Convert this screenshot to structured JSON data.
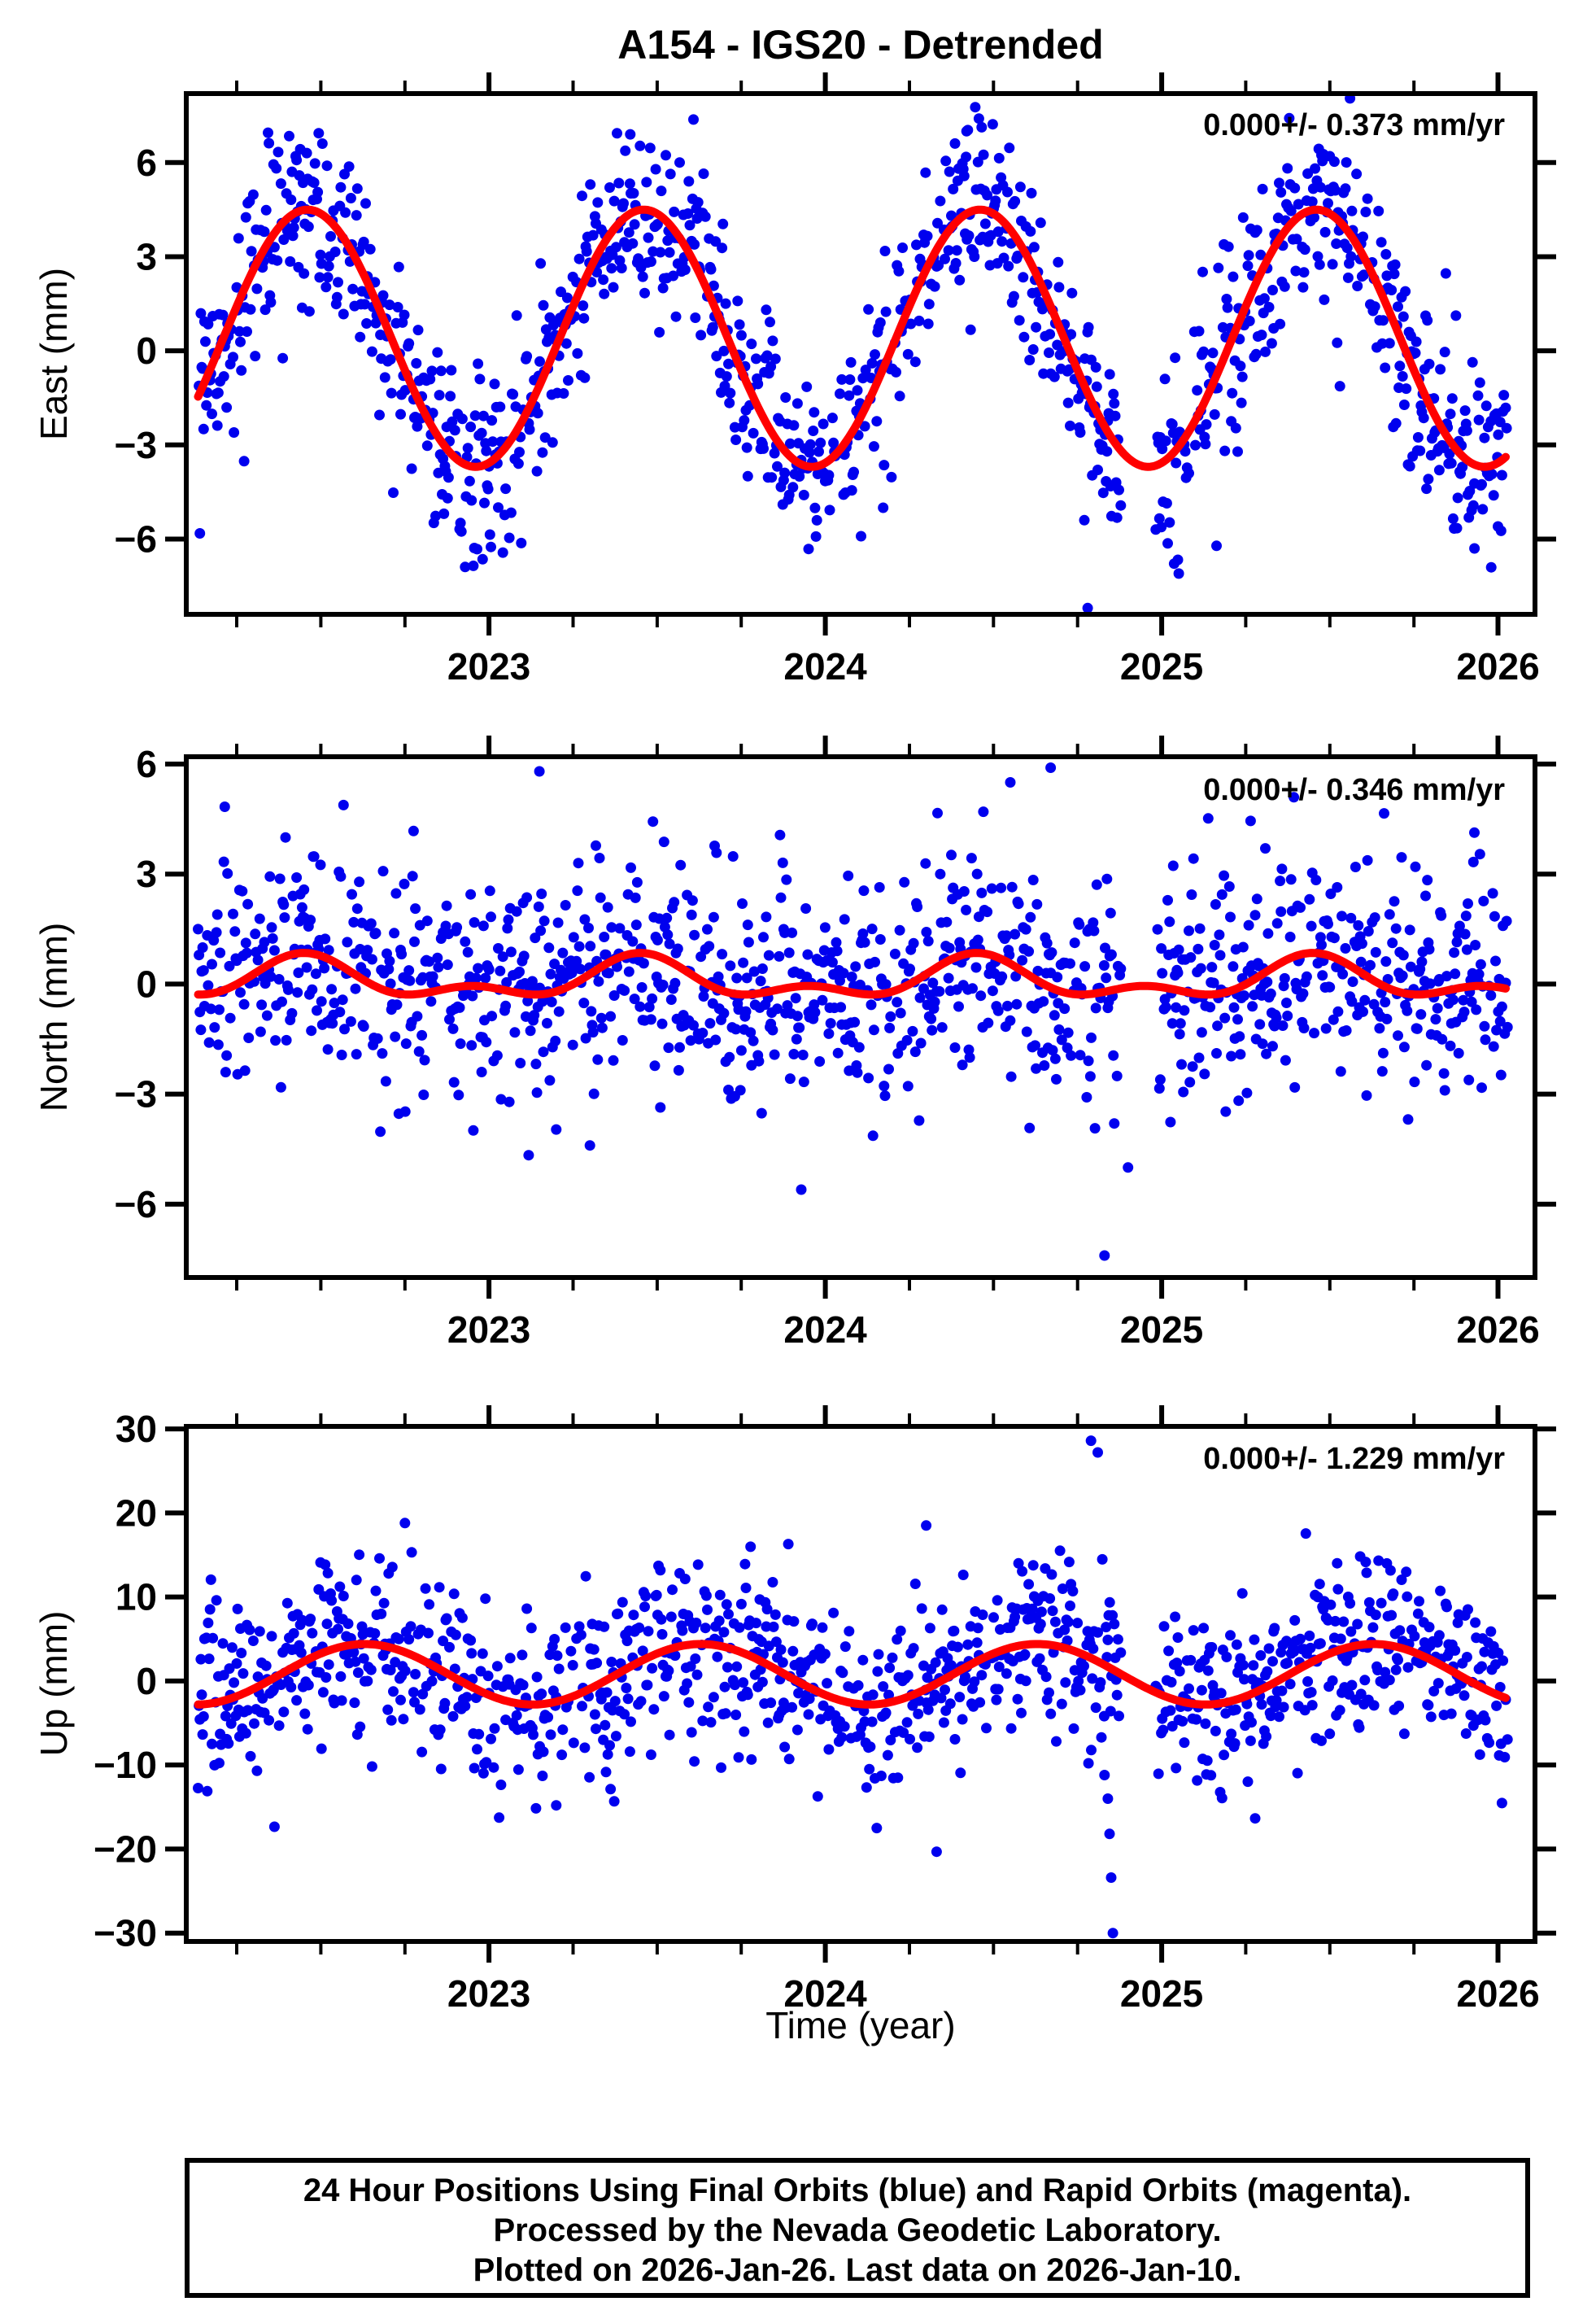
{
  "title": "A154 - IGS20 - Detrended",
  "xlabel": "Time (year)",
  "caption": {
    "line1": "24 Hour Positions Using Final Orbits (blue) and Rapid Orbits (magenta).",
    "line2": "Processed by the Nevada Geodetic Laboratory.",
    "line3": "Plotted on 2026-Jan-26. Last data on 2026-Jan-10."
  },
  "colors": {
    "points": "#0000ee",
    "model_curve": "#ff0000",
    "frame": "#000000",
    "text": "#000000"
  },
  "chart_data": {
    "type": "scatter",
    "description": "GPS station daily position time series, detrended, three components with seasonal model fit",
    "x_range": [
      2022.1,
      2026.11
    ],
    "x_data_start": 2022.135,
    "x_data_end": 2026.03,
    "sample_step_years": 0.0027379,
    "acceptance": 0.8,
    "data_gap": [
      2024.88,
      2024.98
    ],
    "x_major_ticks": [
      2023,
      2024,
      2025,
      2026
    ],
    "x_tick_labels": [
      "2023",
      "2024",
      "2025",
      "2026"
    ],
    "x_minor_tick_interval": 0.25,
    "panels": [
      {
        "id": "east",
        "ylabel": "East (mm)",
        "annotation": "0.000+/- 0.373 mm/yr",
        "trend_mm_yr": 0.0,
        "trend_sigma_mm_yr": 0.373,
        "ylim": [
          -8.4,
          8.2
        ],
        "yticks": [
          6,
          3,
          0,
          -3,
          -6
        ],
        "model": {
          "mean": 0.4,
          "annual_amp": 4.1,
          "annual_peak_phase": 0.46,
          "semiannual_amp": 0.0
        },
        "noise_sigma": 1.45,
        "outliers": [
          [
            2024.42,
            7.0
          ],
          [
            2023.42,
            6.9
          ],
          [
            2024.77,
            -5.4
          ],
          [
            2024.78,
            -8.2
          ],
          [
            2025.93,
            -6.3
          ],
          [
            2025.98,
            -6.9
          ],
          [
            2026.0,
            -5.6
          ]
        ]
      },
      {
        "id": "north",
        "ylabel": "North (mm)",
        "annotation": "0.000+/- 0.346 mm/yr",
        "trend_mm_yr": 0.0,
        "trend_sigma_mm_yr": 0.346,
        "ylim": [
          -8.0,
          6.2
        ],
        "yticks": [
          6,
          3,
          0,
          -3,
          -6
        ],
        "model": {
          "mean": 0.1,
          "annual_amp": 0.45,
          "annual_peak_phase": 0.45,
          "semiannual_amp": 0.3
        },
        "noise_sigma": 1.5,
        "outliers": [
          [
            2023.15,
            5.8
          ],
          [
            2024.55,
            5.5
          ],
          [
            2024.67,
            5.9
          ],
          [
            2024.47,
            4.7
          ],
          [
            2024.83,
            -7.4
          ],
          [
            2023.3,
            -4.4
          ],
          [
            2024.9,
            -5.0
          ]
        ]
      },
      {
        "id": "up",
        "ylabel": "Up (mm)",
        "annotation": "0.000+/- 1.229 mm/yr",
        "trend_mm_yr": 0.0,
        "trend_sigma_mm_yr": 1.229,
        "ylim": [
          -31.0,
          30.3
        ],
        "yticks": [
          30,
          20,
          10,
          0,
          -10,
          -20,
          -30
        ],
        "model": {
          "mean": 0.8,
          "annual_amp": 3.6,
          "annual_peak_phase": 0.63,
          "semiannual_amp": 0.0
        },
        "noise_sigma": 5.0,
        "outliers": [
          [
            2024.79,
            28.6
          ],
          [
            2024.81,
            27.2
          ],
          [
            2024.83,
            -11.2
          ],
          [
            2024.84,
            -14.0
          ],
          [
            2024.845,
            -18.2
          ],
          [
            2024.85,
            -23.4
          ],
          [
            2024.855,
            -30.0
          ],
          [
            2022.75,
            18.8
          ],
          [
            2024.3,
            18.5
          ],
          [
            2023.2,
            -14.8
          ]
        ]
      }
    ]
  }
}
